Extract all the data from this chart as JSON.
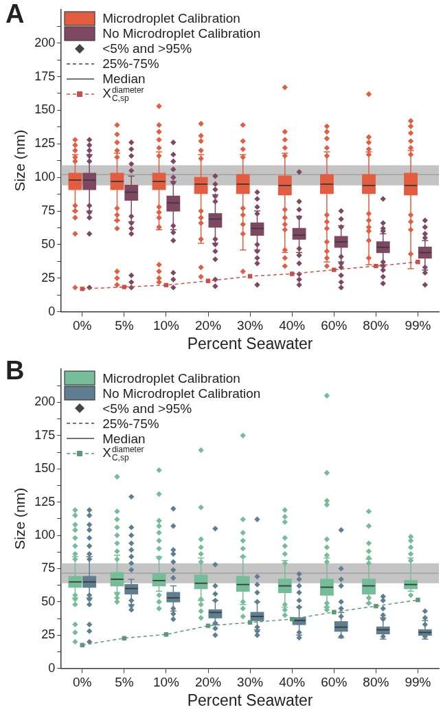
{
  "chart_data": [
    {
      "type": "box",
      "title": "A",
      "xlabel": "Percent Seawater",
      "ylabel": "Size (nm)",
      "categories": [
        "0%",
        "5%",
        "10%",
        "20%",
        "30%",
        "40%",
        "60%",
        "80%",
        "99%"
      ],
      "ylim": [
        0,
        225
      ],
      "yticks": [
        0,
        {
          "value": 12.5,
          "label": null
        },
        25,
        {
          "value": 37.5,
          "label": null
        },
        50,
        {
          "value": 62.5,
          "label": null
        },
        75,
        {
          "value": 87.5,
          "label": null
        },
        100,
        {
          "value": 112.5,
          "label": null
        },
        125,
        {
          "value": 137.5,
          "label": null
        },
        150,
        {
          "value": 162.5,
          "label": null
        },
        175,
        {
          "value": 187.5,
          "label": null
        },
        200,
        {
          "value": 212.5,
          "label": null
        }
      ],
      "grid": false,
      "legend": "top left",
      "marker": "diamond",
      "annotations": [
        "<5% and >95%",
        "25%-75%",
        "Median"
      ],
      "bands": [
        {
          "axis": "y",
          "from": 94,
          "to": 109,
          "color": "#c4c4c4"
        }
      ],
      "ref_lines": [
        {
          "axis": "y",
          "value": 102,
          "color": "#9a9a9a"
        }
      ],
      "series": [
        {
          "name": "Microdroplet Calibration",
          "color": "#e35d40",
          "boxes": [
            {
              "low": 75,
              "q1": 91,
              "median": 98,
              "q3": 103,
              "high": 117,
              "outliers": [
                128,
                124,
                120,
                115,
                112,
                79,
                75,
                70,
                58,
                18
              ]
            },
            {
              "low": 68,
              "q1": 91,
              "median": 97,
              "q3": 103,
              "high": 118,
              "outliers": [
                139,
                132,
                126,
                120,
                115,
                77,
                72,
                68,
                62,
                30,
                25,
                20
              ]
            },
            {
              "low": 61,
              "q1": 91,
              "median": 97,
              "q3": 103,
              "high": 119,
              "outliers": [
                153,
                139,
                134,
                128,
                122,
                116,
                78,
                74,
                70,
                63,
                35,
                30,
                25,
                22
              ]
            },
            {
              "low": 51,
              "q1": 88,
              "median": 95,
              "q3": 100,
              "high": 117,
              "outliers": [
                140,
                131,
                127,
                120,
                114,
                75,
                70,
                66,
                54,
                33,
                26
              ]
            },
            {
              "low": 46,
              "q1": 88,
              "median": 95,
              "q3": 102,
              "high": 117,
              "outliers": [
                139,
                127,
                121,
                115,
                77,
                72,
                65,
                58,
                30
              ]
            },
            {
              "low": 44,
              "q1": 87,
              "median": 94,
              "q3": 101,
              "high": 118,
              "outliers": [
                167,
                134,
                128,
                122,
                116,
                76,
                70,
                65,
                61,
                46,
                40,
                34
              ]
            },
            {
              "low": 37,
              "q1": 88,
              "median": 95,
              "q3": 102,
              "high": 119,
              "outliers": [
                138,
                134,
                129,
                122,
                116,
                72,
                67,
                62,
                52,
                45,
                40,
                34
              ]
            },
            {
              "low": 35,
              "q1": 88,
              "median": 94,
              "q3": 102,
              "high": 119,
              "outliers": [
                162,
                130,
                126,
                121,
                117,
                73,
                68,
                63,
                60,
                53,
                40
              ]
            },
            {
              "low": 32,
              "q1": 87,
              "median": 94,
              "q3": 103,
              "high": 120,
              "outliers": [
                142,
                138,
                133,
                127,
                122,
                117,
                72,
                67,
                61,
                43
              ]
            }
          ]
        },
        {
          "name": "No Microdroplet Calibration",
          "color": "#7e4862",
          "boxes": [
            {
              "low": 75,
              "q1": 91,
              "median": 98,
              "q3": 103,
              "high": 117,
              "outliers": [
                128,
                124,
                120,
                116,
                112,
                79,
                74,
                70,
                58,
                18
              ]
            },
            {
              "low": 67,
              "q1": 83,
              "median": 89,
              "q3": 94,
              "high": 101,
              "outliers": [
                126,
                121,
                116,
                110,
                105,
                71,
                66,
                62,
                58,
                27,
                22,
                18
              ]
            },
            {
              "low": 61,
              "q1": 75,
              "median": 81,
              "q3": 86,
              "high": 97,
              "outliers": [
                126,
                117,
                112,
                106,
                100,
                96,
                64,
                59,
                53,
                29,
                24,
                18
              ]
            },
            {
              "low": 51,
              "q1": 63,
              "median": 69,
              "q3": 73,
              "high": 87,
              "outliers": [
                101,
                95,
                91,
                86,
                82,
                54,
                50,
                45,
                39,
                24,
                19
              ]
            },
            {
              "low": 46,
              "q1": 57,
              "median": 62,
              "q3": 66,
              "high": 75,
              "outliers": [
                89,
                84,
                78,
                73,
                50,
                45,
                40,
                36,
                20
              ]
            },
            {
              "low": 44,
              "q1": 54,
              "median": 57,
              "q3": 62,
              "high": 71,
              "outliers": [
                104,
                82,
                76,
                70,
                47,
                42,
                36,
                28,
                24,
                20
              ]
            },
            {
              "low": 37,
              "q1": 48,
              "median": 52,
              "q3": 56,
              "high": 64,
              "outliers": [
                75,
                69,
                63,
                41,
                36,
                33,
                27,
                22,
                18
              ]
            },
            {
              "low": 35,
              "q1": 44,
              "median": 48,
              "q3": 52,
              "high": 58,
              "outliers": [
                84,
                66,
                62,
                60,
                37,
                34,
                31,
                26,
                21
              ]
            },
            {
              "low": 31,
              "q1": 40,
              "median": 44,
              "q3": 48,
              "high": 53,
              "outliers": [
                68,
                63,
                58,
                55,
                33,
                29,
                20
              ]
            }
          ]
        },
        {
          "name": "X$^{diameter}$$_{C,sp}$",
          "type": "line",
          "color": "#c9504a",
          "marker": "square",
          "line_style": "dashed",
          "values": [
            17,
            18.4,
            19.8,
            22.9,
            26.4,
            28.2,
            31.2,
            34,
            37
          ]
        }
      ]
    },
    {
      "type": "box",
      "title": "B",
      "xlabel": "Percent Seawater",
      "ylabel": "Size (nm)",
      "categories": [
        "0%",
        "5%",
        "10%",
        "20%",
        "30%",
        "40%",
        "60%",
        "80%",
        "99%"
      ],
      "ylim": [
        0,
        225
      ],
      "yticks": [
        0,
        {
          "value": 12.5,
          "label": null
        },
        25,
        {
          "value": 37.5,
          "label": null
        },
        50,
        {
          "value": 62.5,
          "label": null
        },
        75,
        {
          "value": 87.5,
          "label": null
        },
        100,
        {
          "value": 112.5,
          "label": null
        },
        125,
        {
          "value": 137.5,
          "label": null
        },
        150,
        {
          "value": 162.5,
          "label": null
        },
        175,
        {
          "value": 187.5,
          "label": null
        },
        200,
        {
          "value": 212.5,
          "label": null
        }
      ],
      "grid": false,
      "legend": "top left",
      "marker": "diamond",
      "annotations": [
        "<5% and >95%",
        "25%-75%",
        "Median"
      ],
      "bands": [
        {
          "axis": "y",
          "from": 64,
          "to": 79,
          "color": "#c4c4c4"
        }
      ],
      "ref_lines": [
        {
          "axis": "y",
          "value": 71.5,
          "color": "#9a9a9a"
        }
      ],
      "series": [
        {
          "name": "Microdroplet Calibration",
          "color": "#74bd98",
          "boxes": [
            {
              "low": 53,
              "q1": 61,
              "median": 65,
              "q3": 69,
              "high": 84,
              "outliers": [
                119,
                115,
                108,
                104,
                98,
                92,
                86,
                82,
                55,
                52,
                48,
                33,
                27,
                20
              ]
            },
            {
              "low": 57,
              "q1": 62,
              "median": 67,
              "q3": 72,
              "high": 85,
              "outliers": [
                144,
                118,
                112,
                106,
                100,
                94,
                88,
                82,
                56,
                53,
                50
              ]
            },
            {
              "low": 58,
              "q1": 62,
              "median": 66,
              "q3": 71,
              "high": 84,
              "outliers": [
                149,
                131,
                111,
                107,
                102,
                96,
                90,
                83,
                55,
                50,
                45
              ]
            },
            {
              "low": 51,
              "q1": 60,
              "median": 64,
              "q3": 70,
              "high": 83,
              "outliers": [
                164,
                121,
                97,
                91,
                86,
                80,
                52,
                48,
                43,
                38
              ]
            },
            {
              "low": 48,
              "q1": 58,
              "median": 63,
              "q3": 69,
              "high": 84,
              "outliers": [
                175,
                112,
                102,
                96,
                90,
                84,
                50,
                45,
                39
              ]
            },
            {
              "low": 46,
              "q1": 57,
              "median": 62,
              "q3": 67,
              "high": 81,
              "outliers": [
                119,
                114,
                110,
                98,
                92,
                86,
                79,
                48,
                44,
                40
              ]
            },
            {
              "low": 46,
              "q1": 55,
              "median": 61,
              "q3": 67,
              "high": 83,
              "outliers": [
                205,
                147,
                126,
                123,
                97,
                91,
                85,
                80,
                49,
                46,
                44
              ]
            },
            {
              "low": 49,
              "q1": 56,
              "median": 62,
              "q3": 67,
              "high": 82,
              "outliers": [
                118,
                107,
                94,
                88,
                83,
                79,
                53,
                49
              ]
            },
            {
              "low": 58,
              "q1": 60,
              "median": 63,
              "q3": 66,
              "high": 83,
              "outliers": [
                99,
                96,
                91,
                86,
                81,
                55
              ]
            }
          ]
        },
        {
          "name": "No Microdroplet Calibration",
          "color": "#5f7f90",
          "boxes": [
            {
              "low": 53,
              "q1": 61,
              "median": 65,
              "q3": 69,
              "high": 84,
              "outliers": [
                119,
                115,
                108,
                104,
                98,
                92,
                86,
                82,
                55,
                52,
                48,
                33,
                28,
                20
              ]
            },
            {
              "low": 48,
              "q1": 56,
              "median": 60,
              "q3": 63,
              "high": 67,
              "outliers": [
                129,
                106,
                100,
                94,
                89,
                84,
                79,
                74,
                51,
                47,
                44
              ]
            },
            {
              "low": 43,
              "q1": 50,
              "median": 53,
              "q3": 57,
              "high": 62,
              "outliers": [
                120,
                107,
                89,
                86,
                80,
                74,
                68,
                45,
                41,
                37
              ]
            },
            {
              "low": 33,
              "q1": 38,
              "median": 42,
              "q3": 44,
              "high": 51,
              "outliers": [
                105,
                78,
                62,
                56,
                51,
                34,
                30,
                25
              ]
            },
            {
              "low": 29,
              "q1": 36,
              "median": 39,
              "q3": 42,
              "high": 50,
              "outliers": [
                112,
                69,
                63,
                57,
                50,
                31,
                28,
                25
              ]
            },
            {
              "low": 25,
              "q1": 33,
              "median": 36,
              "q3": 38,
              "high": 46,
              "outliers": [
                71,
                67,
                62,
                57,
                51,
                46,
                27,
                23
              ]
            },
            {
              "low": 23,
              "q1": 28,
              "median": 31,
              "q3": 35,
              "high": 42,
              "outliers": [
                104,
                75,
                67,
                62,
                50,
                45,
                39,
                24
              ]
            },
            {
              "low": 22,
              "q1": 26,
              "median": 29,
              "q3": 31,
              "high": 38,
              "outliers": [
                54,
                51,
                45,
                40,
                37,
                24
              ]
            },
            {
              "low": 22,
              "q1": 25,
              "median": 27,
              "q3": 29,
              "high": 36,
              "outliers": [
                43,
                38,
                33,
                24
              ]
            }
          ]
        },
        {
          "name": "X$^{diameter}$$_{C,sp}$",
          "type": "line",
          "color": "#5a9a78",
          "marker": "square",
          "line_style": "dashed",
          "values": [
            17.5,
            22.7,
            25.5,
            32,
            34.5,
            37,
            42.3,
            46.8,
            51.4
          ]
        }
      ]
    }
  ]
}
